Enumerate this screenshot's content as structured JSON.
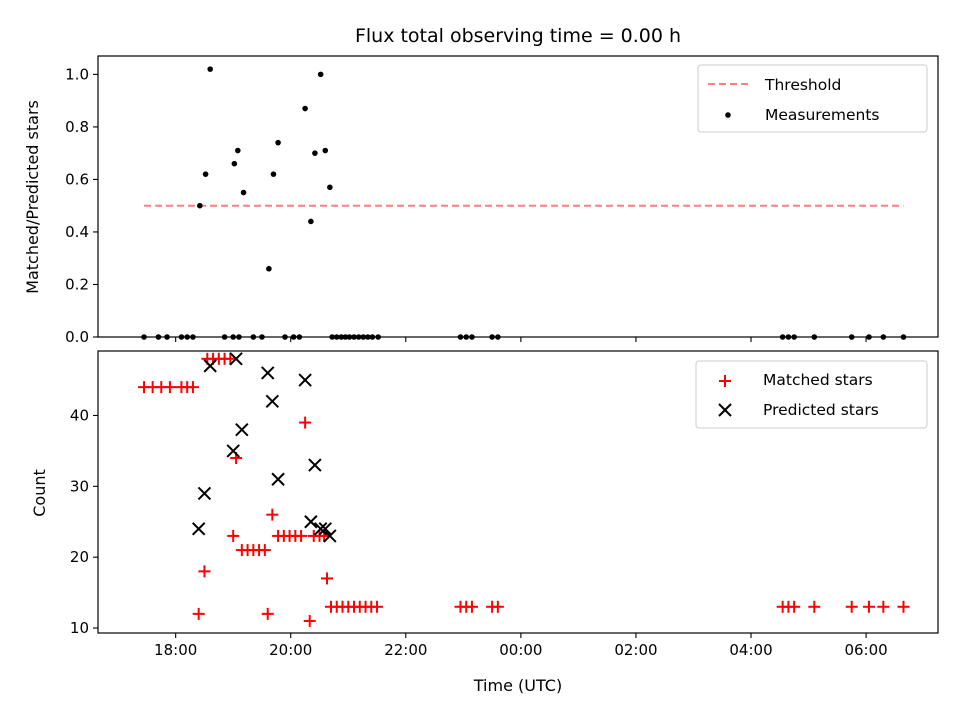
{
  "chart_data": {
    "type": "scatter",
    "title": "Flux total observing time = 0.00 h",
    "colors": {
      "threshold": "#ff7f7f",
      "measurements": "#000000",
      "matched": "#ff0000",
      "predicted": "#000000"
    },
    "x_axis": {
      "label": "Time (UTC)",
      "range_hours": [
        16.65,
        31.25
      ],
      "ticks": [
        {
          "hour": 18,
          "label": "18:00"
        },
        {
          "hour": 20,
          "label": "20:00"
        },
        {
          "hour": 22,
          "label": "22:00"
        },
        {
          "hour": 24,
          "label": "00:00"
        },
        {
          "hour": 26,
          "label": "02:00"
        },
        {
          "hour": 28,
          "label": "04:00"
        },
        {
          "hour": 30,
          "label": "06:00"
        }
      ]
    },
    "panels": [
      {
        "ylabel": "Matched/Predicted stars",
        "ylim": [
          0,
          1.07
        ],
        "yticks": [
          0.0,
          0.2,
          0.4,
          0.6,
          0.8,
          1.0
        ],
        "ytick_labels": [
          "0.0",
          "0.2",
          "0.4",
          "0.6",
          "0.8",
          "1.0"
        ],
        "legend": [
          "Threshold",
          "Measurements"
        ],
        "threshold": {
          "name": "Threshold",
          "value": 0.5,
          "x_range": [
            17.45,
            30.65
          ]
        },
        "measurements": {
          "name": "Measurements",
          "points": [
            [
              17.45,
              0
            ],
            [
              17.7,
              0
            ],
            [
              17.85,
              0
            ],
            [
              18.1,
              0
            ],
            [
              18.2,
              0
            ],
            [
              18.3,
              0
            ],
            [
              18.42,
              0.5
            ],
            [
              18.52,
              0.62
            ],
            [
              18.6,
              1.02
            ],
            [
              18.85,
              0
            ],
            [
              19.0,
              0
            ],
            [
              19.1,
              0
            ],
            [
              19.02,
              0.66
            ],
            [
              19.08,
              0.71
            ],
            [
              19.18,
              0.55
            ],
            [
              19.35,
              0
            ],
            [
              19.5,
              0
            ],
            [
              19.62,
              0.26
            ],
            [
              19.7,
              0.62
            ],
            [
              19.78,
              0.74
            ],
            [
              19.9,
              0
            ],
            [
              20.05,
              0
            ],
            [
              20.15,
              0
            ],
            [
              20.25,
              0.87
            ],
            [
              20.35,
              0.44
            ],
            [
              20.42,
              0.7
            ],
            [
              20.52,
              1.0
            ],
            [
              20.6,
              0.71
            ],
            [
              20.68,
              0.57
            ],
            [
              20.72,
              0
            ],
            [
              20.8,
              0
            ],
            [
              20.88,
              0
            ],
            [
              20.95,
              0
            ],
            [
              21.02,
              0
            ],
            [
              21.1,
              0
            ],
            [
              21.18,
              0
            ],
            [
              21.26,
              0
            ],
            [
              21.34,
              0
            ],
            [
              21.42,
              0
            ],
            [
              21.52,
              0
            ],
            [
              22.95,
              0
            ],
            [
              23.05,
              0
            ],
            [
              23.15,
              0
            ],
            [
              23.5,
              0
            ],
            [
              23.6,
              0
            ],
            [
              28.55,
              0
            ],
            [
              28.65,
              0
            ],
            [
              28.75,
              0
            ],
            [
              29.1,
              0
            ],
            [
              29.75,
              0
            ],
            [
              30.05,
              0
            ],
            [
              30.3,
              0
            ],
            [
              30.65,
              0
            ]
          ]
        }
      },
      {
        "ylabel": "Count",
        "ylim": [
          9.3,
          49.1
        ],
        "yticks": [
          10,
          20,
          30,
          40
        ],
        "ytick_labels": [
          "10",
          "20",
          "30",
          "40"
        ],
        "legend": [
          "Matched stars",
          "Predicted stars"
        ],
        "matched": {
          "name": "Matched stars",
          "points": [
            [
              17.45,
              44
            ],
            [
              17.6,
              44
            ],
            [
              17.75,
              44
            ],
            [
              17.9,
              44
            ],
            [
              18.1,
              44
            ],
            [
              18.2,
              44
            ],
            [
              18.3,
              44
            ],
            [
              18.4,
              12
            ],
            [
              18.5,
              18
            ],
            [
              18.55,
              48
            ],
            [
              18.65,
              48
            ],
            [
              18.75,
              48
            ],
            [
              18.85,
              48
            ],
            [
              18.95,
              48
            ],
            [
              19.0,
              23
            ],
            [
              19.05,
              34
            ],
            [
              19.15,
              21
            ],
            [
              19.25,
              21
            ],
            [
              19.35,
              21
            ],
            [
              19.45,
              21
            ],
            [
              19.55,
              21
            ],
            [
              19.6,
              12
            ],
            [
              19.68,
              26
            ],
            [
              19.78,
              23
            ],
            [
              19.88,
              23
            ],
            [
              19.98,
              23
            ],
            [
              20.08,
              23
            ],
            [
              20.18,
              23
            ],
            [
              20.25,
              39
            ],
            [
              20.33,
              11
            ],
            [
              20.4,
              23
            ],
            [
              20.5,
              23
            ],
            [
              20.58,
              23
            ],
            [
              20.63,
              17
            ],
            [
              20.7,
              13
            ],
            [
              20.8,
              13
            ],
            [
              20.9,
              13
            ],
            [
              21.0,
              13
            ],
            [
              21.1,
              13
            ],
            [
              21.2,
              13
            ],
            [
              21.3,
              13
            ],
            [
              21.4,
              13
            ],
            [
              21.5,
              13
            ],
            [
              22.95,
              13
            ],
            [
              23.05,
              13
            ],
            [
              23.15,
              13
            ],
            [
              23.5,
              13
            ],
            [
              23.6,
              13
            ],
            [
              28.55,
              13
            ],
            [
              28.65,
              13
            ],
            [
              28.75,
              13
            ],
            [
              29.1,
              13
            ],
            [
              29.75,
              13
            ],
            [
              30.05,
              13
            ],
            [
              30.3,
              13
            ],
            [
              30.65,
              13
            ]
          ]
        },
        "predicted": {
          "name": "Predicted stars",
          "points": [
            [
              18.4,
              24
            ],
            [
              18.5,
              29
            ],
            [
              18.6,
              47
            ],
            [
              19.0,
              35
            ],
            [
              19.05,
              48
            ],
            [
              19.15,
              38
            ],
            [
              19.6,
              46
            ],
            [
              19.68,
              42
            ],
            [
              19.78,
              31
            ],
            [
              20.25,
              45
            ],
            [
              20.35,
              25
            ],
            [
              20.42,
              33
            ],
            [
              20.52,
              24
            ],
            [
              20.6,
              24
            ],
            [
              20.68,
              23
            ]
          ]
        }
      }
    ]
  }
}
